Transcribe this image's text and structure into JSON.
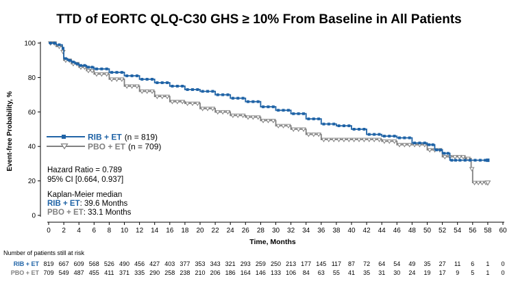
{
  "chart_data": {
    "type": "line",
    "subtype": "kaplan-meier",
    "title": "TTD of EORTC QLQ-C30 GHS ≥ 10% From Baseline in All Patients",
    "xlabel": "Time, Months",
    "ylabel": "Event-free Probability, %",
    "xlim": [
      0,
      60
    ],
    "ylim": [
      0,
      100
    ],
    "x_ticks": [
      0,
      2,
      4,
      6,
      8,
      10,
      12,
      14,
      16,
      18,
      20,
      22,
      24,
      26,
      28,
      30,
      32,
      34,
      36,
      38,
      40,
      42,
      44,
      46,
      48,
      50,
      52,
      54,
      56,
      58,
      60
    ],
    "y_ticks": [
      0,
      20,
      40,
      60,
      80,
      100
    ],
    "legend_position": "middle-left",
    "series": [
      {
        "name": "RIB + ET",
        "n_label": "(n = 819)",
        "color": "#1f63a6",
        "marker": "square",
        "x": [
          0,
          1,
          1.8,
          2,
          2.5,
          3,
          3.5,
          4,
          5,
          6,
          8,
          10,
          12,
          14,
          16,
          18,
          20,
          22,
          24,
          26,
          28,
          30,
          32,
          34,
          36,
          38,
          40,
          42,
          44,
          46,
          48,
          50,
          51,
          52,
          53,
          54,
          56,
          58
        ],
        "values": [
          100,
          99,
          97,
          91,
          90,
          89,
          88,
          87,
          86,
          85,
          83,
          81,
          79,
          77,
          75,
          73,
          72,
          70,
          68,
          66,
          63,
          61,
          59,
          56,
          53,
          52,
          50,
          47,
          46,
          45,
          42,
          41,
          38,
          36,
          32,
          32,
          32,
          32
        ]
      },
      {
        "name": "PBO + ET",
        "n_label": "(n = 709)",
        "color": "#808080",
        "marker": "triangle-down",
        "x": [
          0,
          1,
          1.8,
          2,
          3,
          4,
          5,
          6,
          8,
          10,
          12,
          14,
          16,
          18,
          20,
          22,
          24,
          26,
          28,
          30,
          32,
          34,
          36,
          38,
          40,
          42,
          44,
          46,
          48,
          50,
          52,
          54,
          55,
          55.8,
          56,
          57,
          58
        ],
        "values": [
          100,
          98,
          95,
          90,
          88,
          86,
          84,
          82,
          79,
          75,
          72,
          69,
          66,
          65,
          62,
          60,
          58,
          57,
          55,
          52,
          50,
          47,
          44,
          44,
          44,
          44,
          43,
          41,
          41,
          38,
          34,
          34,
          33,
          27,
          19,
          19,
          19
        ]
      }
    ],
    "annotations": {
      "hazard_ratio": "Hazard Ratio = 0.789",
      "ci": "95% CI [0.664, 0.937]",
      "km_heading": "Kaplan-Meier median",
      "rib_median_label": "RIB + ET",
      "rib_median_value": ": 39.6 Months",
      "pbo_median_label": "PBO + ET",
      "pbo_median_value": ": 33.1 Months"
    },
    "risk_table": {
      "heading": "Number of patients still at risk",
      "rows": [
        {
          "label": "RIB + ET",
          "color": "#1f63a6",
          "values": [
            819,
            667,
            609,
            568,
            526,
            490,
            456,
            427,
            403,
            377,
            353,
            343,
            321,
            293,
            259,
            250,
            213,
            177,
            145,
            117,
            87,
            72,
            64,
            54,
            49,
            35,
            27,
            11,
            6,
            1,
            0
          ]
        },
        {
          "label": "PBO + ET",
          "color": "#808080",
          "values": [
            709,
            549,
            487,
            455,
            411,
            371,
            335,
            290,
            258,
            238,
            210,
            206,
            186,
            164,
            146,
            133,
            106,
            84,
            63,
            55,
            41,
            35,
            31,
            30,
            24,
            19,
            17,
            9,
            5,
            1,
            0
          ]
        }
      ]
    }
  }
}
